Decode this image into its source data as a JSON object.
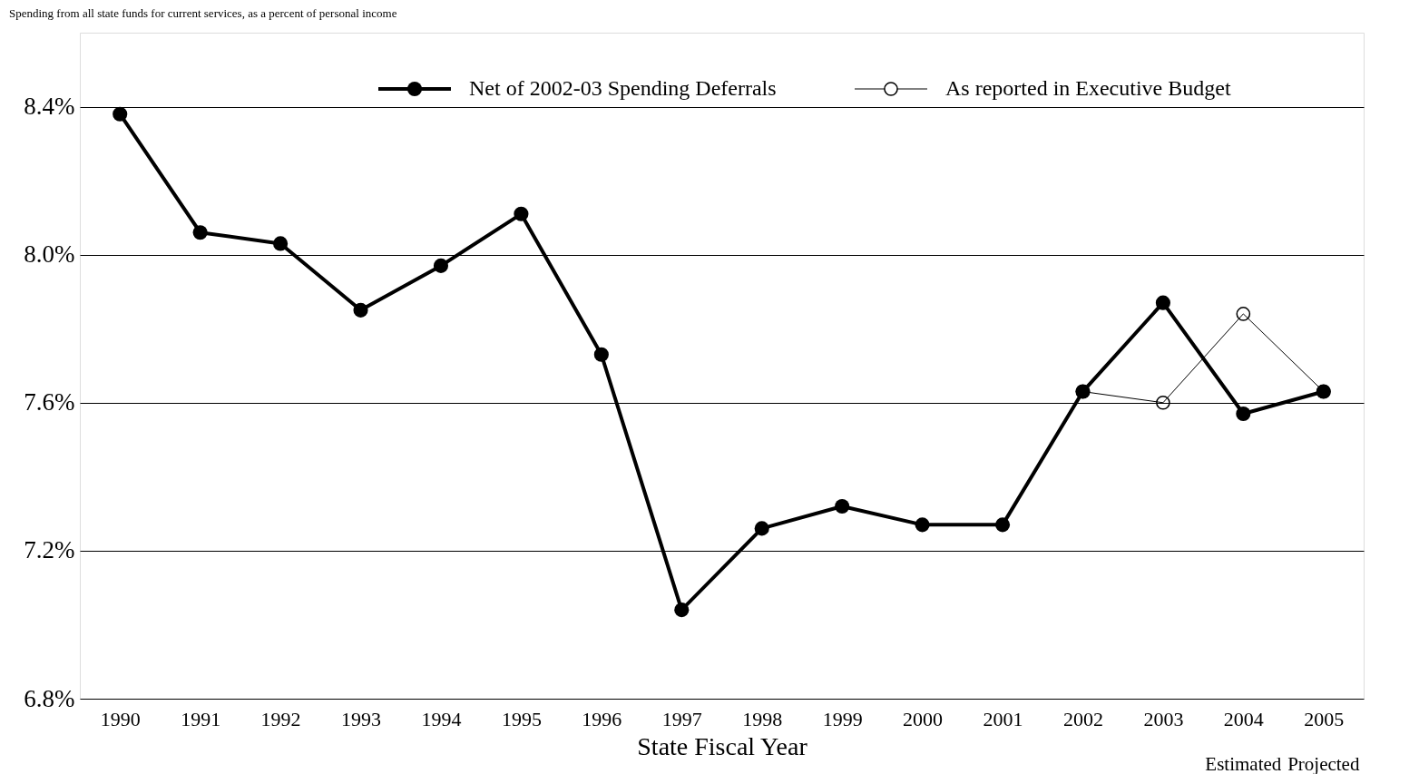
{
  "chart_data": {
    "type": "line",
    "title": "Spending from all state funds for current services, as a percent of personal income",
    "xlabel": "State Fiscal Year",
    "categories": [
      "1990",
      "1991",
      "1992",
      "1993",
      "1994",
      "1995",
      "1996",
      "1997",
      "1998",
      "1999",
      "2000",
      "2001",
      "2002",
      "2003",
      "2004",
      "2005"
    ],
    "series": [
      {
        "name": "Net of 2002-03 Spending Deferrals",
        "color": "#000000",
        "values": [
          8.38,
          8.06,
          8.03,
          7.85,
          7.97,
          8.11,
          7.73,
          7.04,
          7.26,
          7.32,
          7.27,
          7.27,
          7.63,
          7.87,
          7.57,
          7.63
        ]
      },
      {
        "name": "As reported in Executive Budget",
        "color": "#000000",
        "values": [
          null,
          null,
          null,
          null,
          null,
          null,
          null,
          null,
          null,
          null,
          null,
          null,
          7.63,
          7.6,
          7.84,
          7.63
        ]
      }
    ],
    "ylim": [
      6.8,
      8.6
    ],
    "yticks": [
      {
        "value": 6.8,
        "label": "6.8%"
      },
      {
        "value": 7.2,
        "label": "7.2%"
      },
      {
        "value": 7.6,
        "label": "7.6%"
      },
      {
        "value": 8.0,
        "label": "8.0%"
      },
      {
        "value": 8.4,
        "label": "8.4%"
      }
    ],
    "grid": "y",
    "legend": "top",
    "marker": "circle",
    "line_style": "solid",
    "annotations": [
      "Estimated",
      "Projected"
    ]
  }
}
